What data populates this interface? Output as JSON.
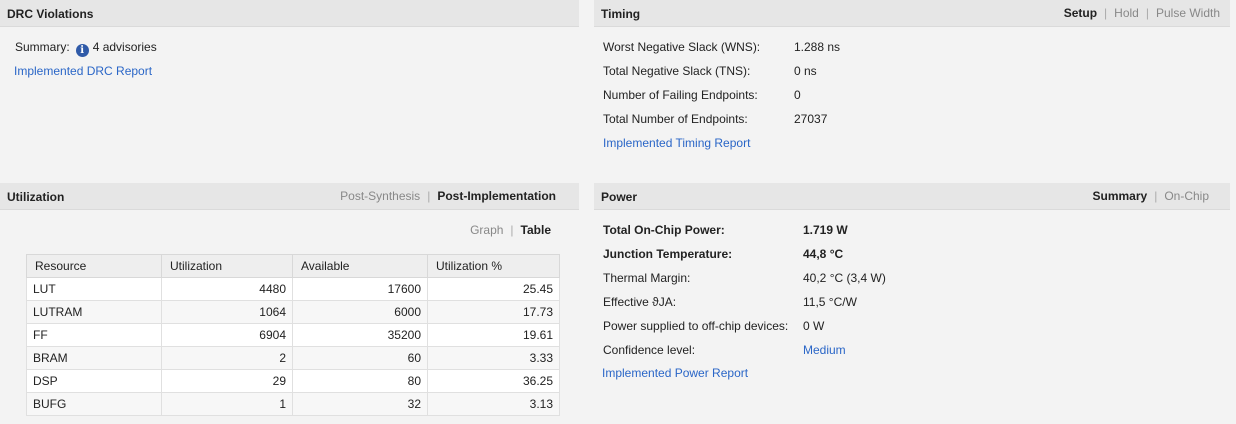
{
  "drc": {
    "title": "DRC Violations",
    "summary_label": "Summary:",
    "summary_value": "4 advisories",
    "report_link": "Implemented DRC Report"
  },
  "timing": {
    "title": "Timing",
    "tabs": [
      "Setup",
      "Hold",
      "Pulse Width"
    ],
    "active_tab": "Setup",
    "rows": [
      {
        "label": "Worst Negative Slack (WNS):",
        "value": "1.288 ns"
      },
      {
        "label": "Total Negative Slack (TNS):",
        "value": "0 ns"
      },
      {
        "label": "Number of Failing Endpoints:",
        "value": "0"
      },
      {
        "label": "Total Number of Endpoints:",
        "value": "27037"
      }
    ],
    "report_link": "Implemented Timing Report"
  },
  "utilization": {
    "title": "Utilization",
    "tabs": [
      "Post-Synthesis",
      "Post-Implementation"
    ],
    "active_tab": "Post-Implementation",
    "view_tabs": [
      "Graph",
      "Table"
    ],
    "active_view": "Table",
    "columns": [
      "Resource",
      "Utilization",
      "Available",
      "Utilization %"
    ],
    "rows": [
      [
        "LUT",
        "4480",
        "17600",
        "25.45"
      ],
      [
        "LUTRAM",
        "1064",
        "6000",
        "17.73"
      ],
      [
        "FF",
        "6904",
        "35200",
        "19.61"
      ],
      [
        "BRAM",
        "2",
        "60",
        "3.33"
      ],
      [
        "DSP",
        "29",
        "80",
        "36.25"
      ],
      [
        "BUFG",
        "1",
        "32",
        "3.13"
      ]
    ]
  },
  "power": {
    "title": "Power",
    "tabs": [
      "Summary",
      "On-Chip"
    ],
    "active_tab": "Summary",
    "rows": [
      {
        "label": "Total On-Chip Power:",
        "value": "1.719 W",
        "bold": true
      },
      {
        "label": "Junction Temperature:",
        "value": "44,8 °C",
        "bold": true
      },
      {
        "label": "Thermal Margin:",
        "value": "40,2 °C (3,4 W)",
        "bold": false
      },
      {
        "label": "Effective ϑJA:",
        "value": "11,5 °C/W",
        "bold": false
      },
      {
        "label": "Power supplied to off-chip devices:",
        "value": "0 W",
        "bold": false
      },
      {
        "label": "Confidence level:",
        "value": "Medium",
        "bold": false,
        "link": true
      }
    ],
    "report_link": "Implemented Power Report"
  },
  "colors": {
    "link": "#2a66c7",
    "header_bg": "#e6e6e6",
    "panel_bg": "#f3f3f3"
  },
  "icons": {
    "summary_icon": "info-icon"
  }
}
